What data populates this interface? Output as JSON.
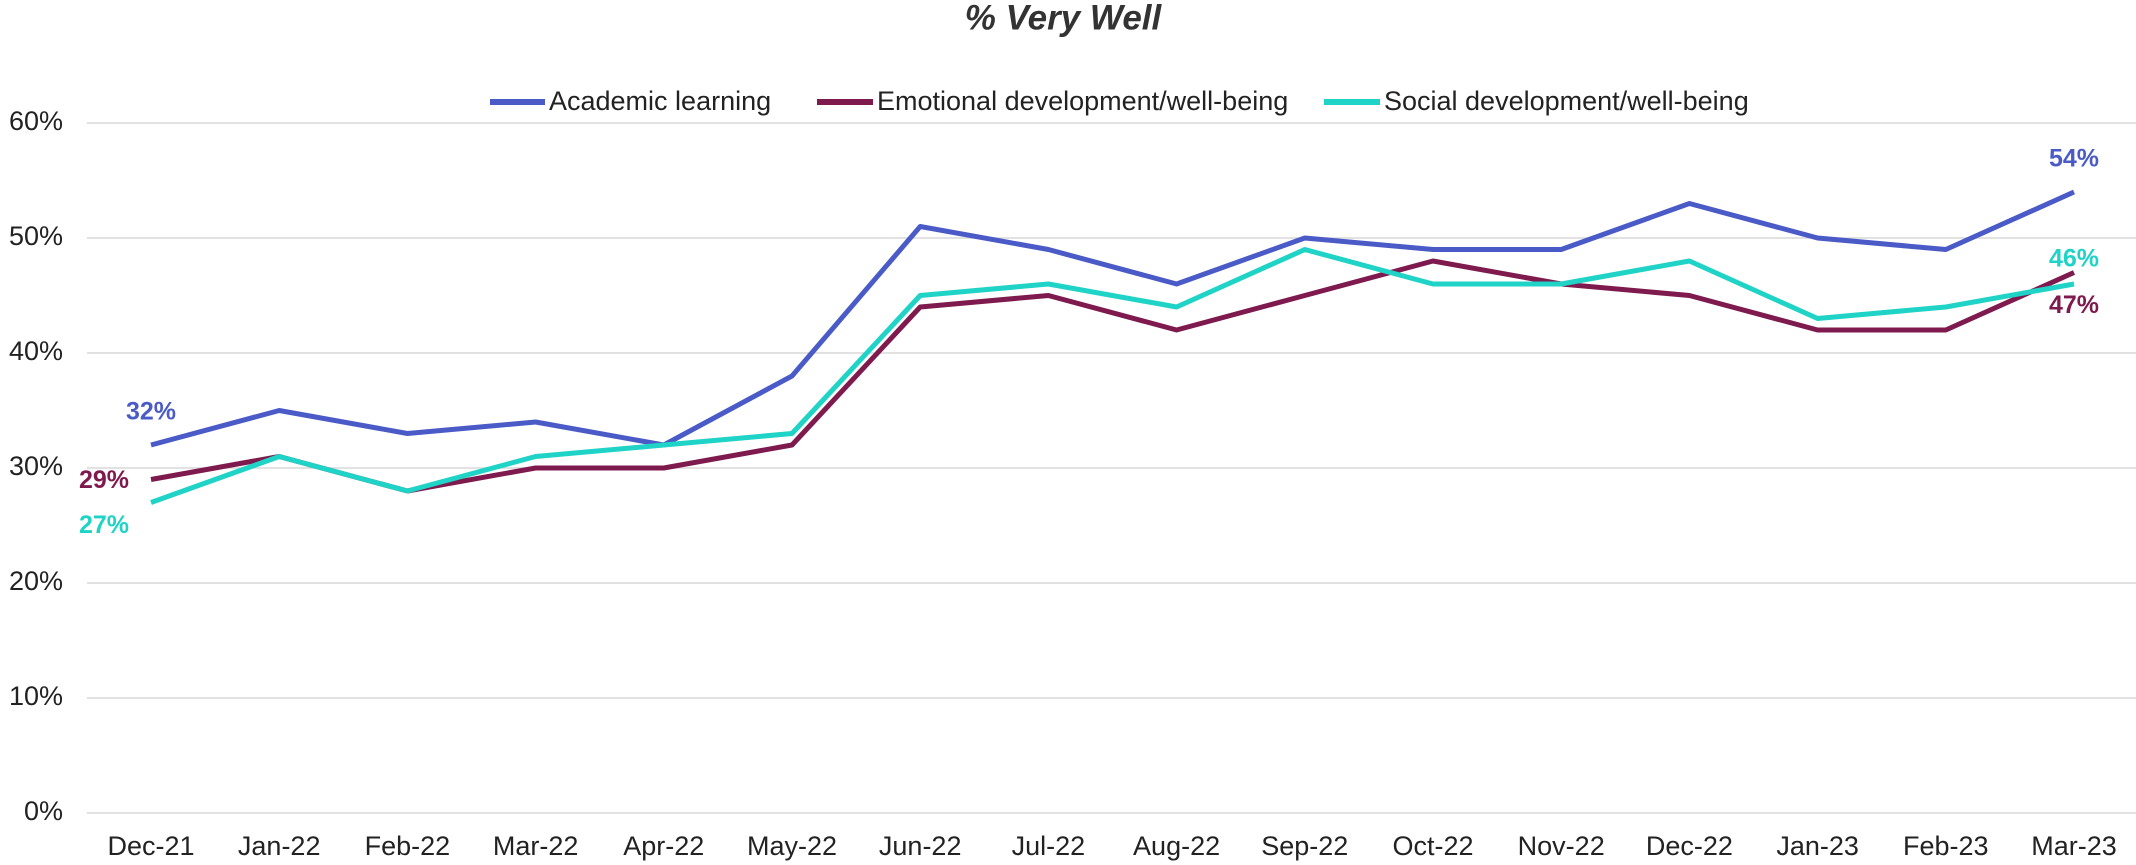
{
  "chart_data": {
    "type": "line",
    "title": "% Very Well",
    "categories": [
      "Dec-21",
      "Jan-22",
      "Feb-22",
      "Mar-22",
      "Apr-22",
      "May-22",
      "Jun-22",
      "Jul-22",
      "Aug-22",
      "Sep-22",
      "Oct-22",
      "Nov-22",
      "Dec-22",
      "Jan-23",
      "Feb-23",
      "Mar-23"
    ],
    "series": [
      {
        "name": "Academic learning",
        "color": "#4a5bc8",
        "values": [
          32,
          35,
          33,
          34,
          32,
          38,
          51,
          49,
          46,
          50,
          49,
          49,
          53,
          50,
          49,
          54
        ],
        "value_labels": [
          "32%",
          null,
          null,
          null,
          null,
          null,
          null,
          null,
          null,
          null,
          null,
          null,
          null,
          null,
          null,
          "54%"
        ]
      },
      {
        "name": "Emotional development/well-being",
        "color": "#7e1a4e",
        "values": [
          29,
          31,
          28,
          30,
          30,
          32,
          44,
          45,
          42,
          45,
          48,
          46,
          45,
          42,
          42,
          47
        ],
        "value_labels": [
          "29%",
          null,
          null,
          null,
          null,
          null,
          null,
          null,
          null,
          null,
          null,
          null,
          null,
          null,
          null,
          "47%"
        ]
      },
      {
        "name": "Social development/well-being",
        "color": "#1fd3c6",
        "values": [
          27,
          31,
          28,
          31,
          32,
          33,
          45,
          46,
          44,
          49,
          46,
          46,
          48,
          43,
          44,
          46
        ],
        "value_labels": [
          "27%",
          null,
          null,
          null,
          null,
          null,
          null,
          null,
          null,
          null,
          null,
          null,
          null,
          null,
          null,
          "46%"
        ]
      }
    ],
    "ylim": [
      0,
      60
    ],
    "yticks": [
      {
        "value": 0,
        "label": "0%"
      },
      {
        "value": 10,
        "label": "10%"
      },
      {
        "value": 20,
        "label": "20%"
      },
      {
        "value": 30,
        "label": "30%"
      },
      {
        "value": 40,
        "label": "40%"
      },
      {
        "value": 50,
        "label": "50%"
      },
      {
        "value": 60,
        "label": "60%"
      }
    ],
    "grid": true,
    "legend": "top"
  }
}
